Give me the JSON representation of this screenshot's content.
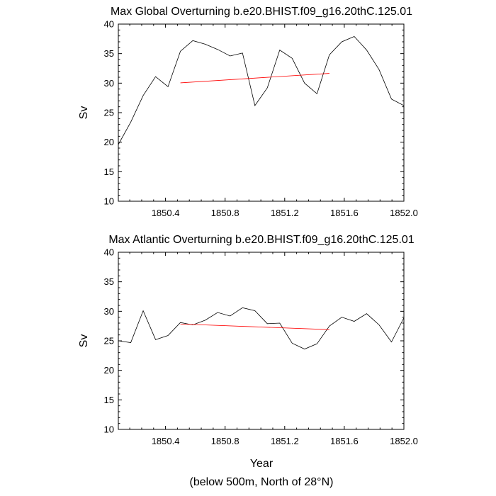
{
  "footnote": "(below 500m, North of 28°N)",
  "chart_data": [
    {
      "type": "line",
      "title": "Max Global Overturning b.e20.BHIST.f09_g16.20thC.125.01",
      "xlabel": "",
      "ylabel": "Sv",
      "xlim": [
        1850.0833,
        1852.0
      ],
      "ylim": [
        10,
        40
      ],
      "xticks": [
        1850.4,
        1850.8,
        1851.2,
        1851.6,
        1852.0
      ],
      "xtick_labels": [
        "1850.4",
        "1850.8",
        "1851.2",
        "1851.6",
        "1852.0"
      ],
      "yticks": [
        10,
        15,
        20,
        25,
        30,
        35,
        40
      ],
      "ytick_labels": [
        "10",
        "15",
        "20",
        "25",
        "30",
        "35",
        "40"
      ],
      "grid": false,
      "series": [
        {
          "color": "#000000",
          "x": [
            1850.0833,
            1850.1667,
            1850.25,
            1850.3333,
            1850.4167,
            1850.5,
            1850.5833,
            1850.6667,
            1850.75,
            1850.8333,
            1850.9167,
            1851.0,
            1851.0833,
            1851.1667,
            1851.25,
            1851.3333,
            1851.4167,
            1851.5,
            1851.5833,
            1851.6667,
            1851.75,
            1851.8333,
            1851.9167,
            1852.0
          ],
          "values": [
            19.6,
            23.4,
            27.9,
            31.1,
            29.4,
            35.4,
            37.2,
            36.6,
            35.7,
            34.6,
            35.1,
            26.2,
            29.2,
            35.6,
            34.2,
            30.0,
            28.2,
            34.8,
            37.0,
            37.9,
            35.6,
            32.3,
            27.3,
            26.2
          ]
        },
        {
          "color": "#ff0000",
          "x": [
            1850.5,
            1851.5
          ],
          "values": [
            30.05,
            31.65
          ]
        }
      ]
    },
    {
      "type": "line",
      "title": "Max Atlantic Overturning b.e20.BHIST.f09_g16.20thC.125.01",
      "xlabel": "Year",
      "ylabel": "Sv",
      "xlim": [
        1850.0833,
        1852.0
      ],
      "ylim": [
        10,
        40
      ],
      "xticks": [
        1850.4,
        1850.8,
        1851.2,
        1851.6,
        1852.0
      ],
      "xtick_labels": [
        "1850.4",
        "1850.8",
        "1851.2",
        "1851.6",
        "1852.0"
      ],
      "yticks": [
        10,
        15,
        20,
        25,
        30,
        35,
        40
      ],
      "ytick_labels": [
        "10",
        "15",
        "20",
        "25",
        "30",
        "35",
        "40"
      ],
      "grid": false,
      "series": [
        {
          "color": "#000000",
          "x": [
            1850.0833,
            1850.1667,
            1850.25,
            1850.3333,
            1850.4167,
            1850.5,
            1850.5833,
            1850.6667,
            1850.75,
            1850.8333,
            1850.9167,
            1851.0,
            1851.0833,
            1851.1667,
            1851.25,
            1851.3333,
            1851.4167,
            1851.5,
            1851.5833,
            1851.6667,
            1851.75,
            1851.8333,
            1851.9167,
            1852.0
          ],
          "values": [
            25.0,
            24.7,
            30.1,
            25.2,
            25.9,
            28.1,
            27.7,
            28.5,
            29.8,
            29.2,
            30.6,
            30.1,
            27.9,
            28.0,
            24.6,
            23.6,
            24.5,
            27.5,
            29.0,
            28.3,
            29.6,
            27.7,
            24.8,
            28.9
          ]
        },
        {
          "color": "#ff0000",
          "x": [
            1850.5,
            1851.5
          ],
          "values": [
            27.85,
            26.9
          ]
        }
      ]
    }
  ]
}
